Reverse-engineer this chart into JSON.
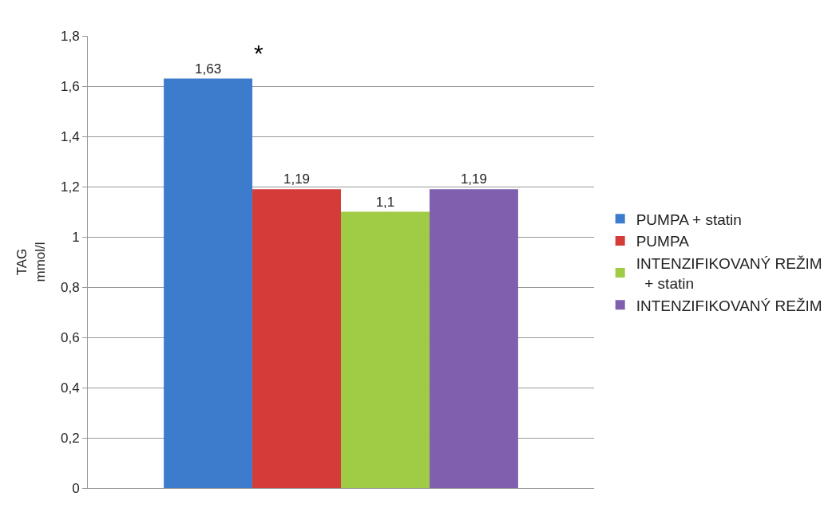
{
  "chart_data": {
    "type": "bar",
    "categories": [
      null
    ],
    "series": [
      {
        "name": "PUMPA + statin",
        "color": "#3d7ccc",
        "values": [
          1.63
        ],
        "value_labels": [
          "1,63"
        ]
      },
      {
        "name": "PUMPA",
        "color": "#d43c3a",
        "values": [
          1.19
        ],
        "value_labels": [
          "1,19"
        ]
      },
      {
        "name": "INTENZIFIKOVANÝ REŽIM + statin",
        "color": "#9fcb45",
        "values": [
          1.1
        ],
        "value_labels": [
          "1,1"
        ]
      },
      {
        "name": "INTENZIFIKOVANÝ REŽIM",
        "color": "#7f5fae",
        "values": [
          1.19
        ],
        "value_labels": [
          "1,19"
        ]
      }
    ],
    "ylabel": "TAG\nmmol/l",
    "ylim": [
      0,
      1.8
    ],
    "yticks": [
      0,
      {
        "value": 0.2,
        "label": "0,2"
      },
      {
        "value": 0.4,
        "label": "0,4"
      },
      {
        "value": 0.6,
        "label": "0,6"
      },
      {
        "value": 0.8,
        "label": "0,8"
      },
      1,
      {
        "value": 1.2,
        "label": "1,2"
      },
      {
        "value": 1.4,
        "label": "1,4"
      },
      {
        "value": 1.6,
        "label": "1,6"
      },
      {
        "value": 1.8,
        "label": "1,8"
      }
    ],
    "annotations": [
      "*"
    ],
    "grid": "y",
    "legend": "right"
  }
}
